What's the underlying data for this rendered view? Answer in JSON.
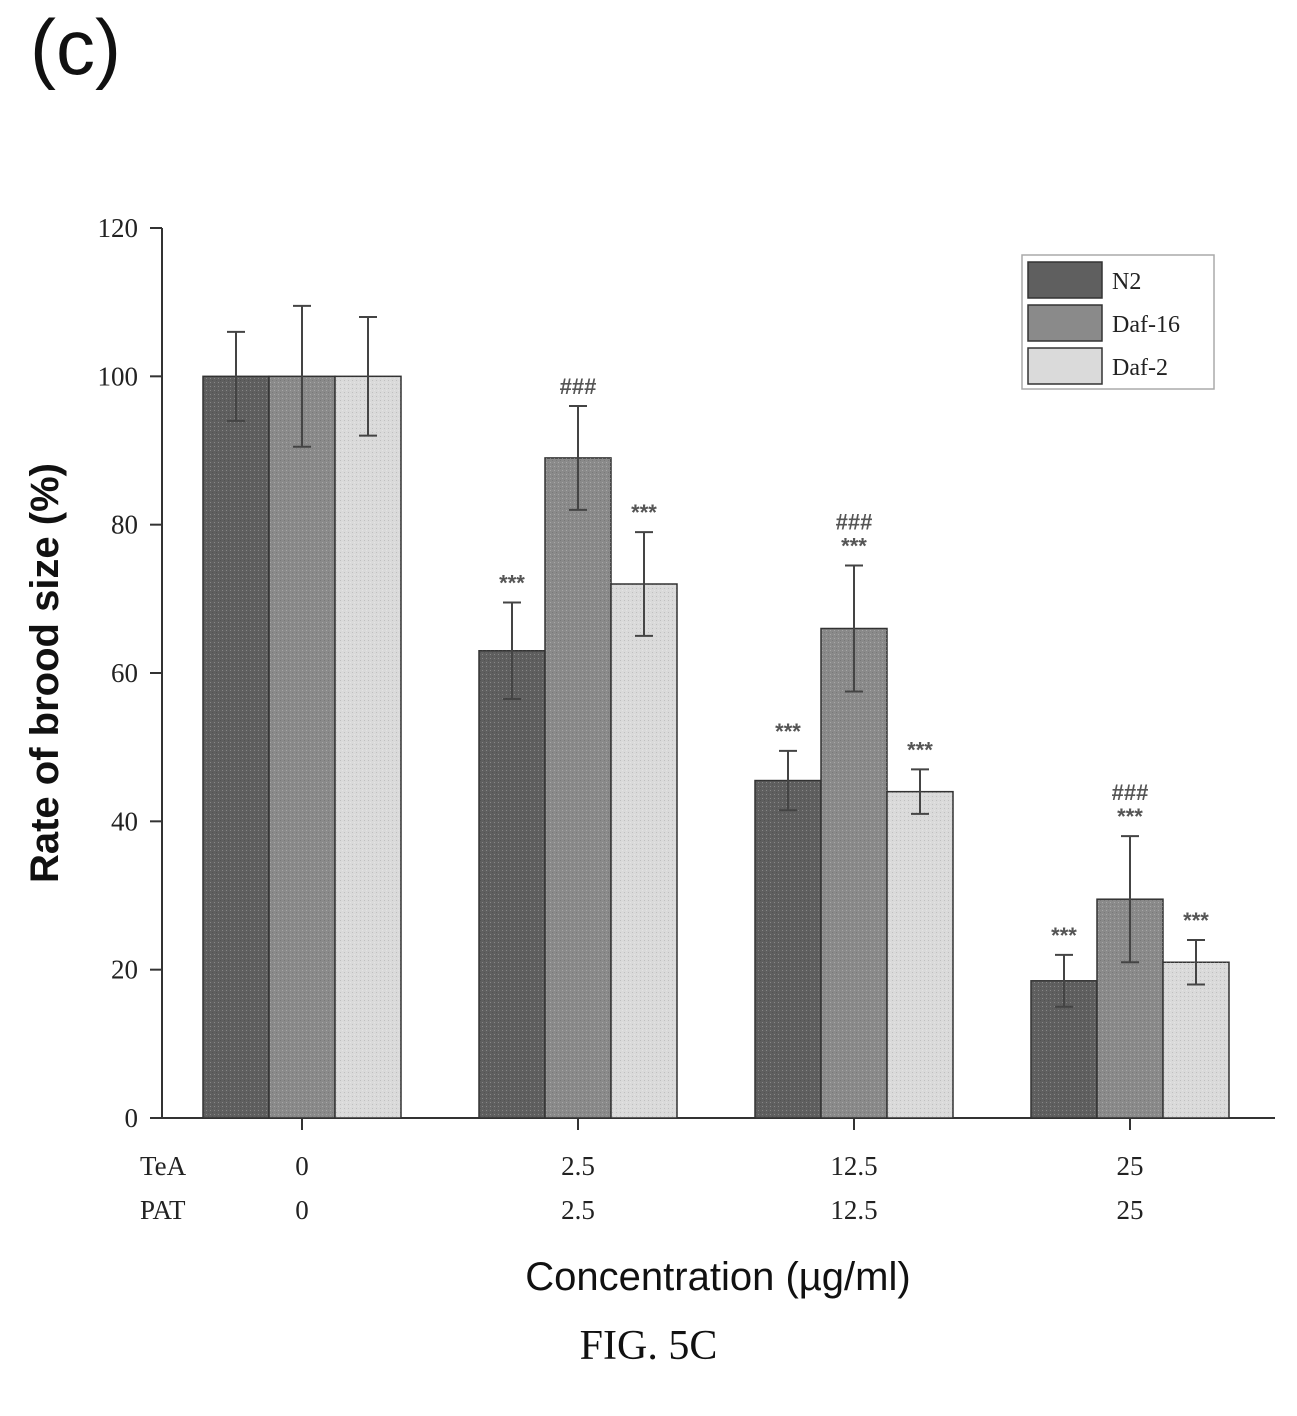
{
  "figure": {
    "panel_label": "(c)",
    "caption": "FIG. 5C"
  },
  "colors": {
    "N2": "#5f5f5f",
    "Daf-16": "#8a8a8a",
    "Daf-2": "#dadada",
    "axis": "#333333"
  },
  "chart_data": {
    "type": "bar",
    "ylabel": "Rate of brood size (%)",
    "xlabel": "Concentration (µg/ml)",
    "ylim": [
      0,
      120
    ],
    "yticks": [
      0,
      20,
      40,
      60,
      80,
      100,
      120
    ],
    "category_rows": [
      {
        "label": "TeA",
        "values": [
          "0",
          "2.5",
          "12.5",
          "25"
        ]
      },
      {
        "label": "PAT",
        "values": [
          "0",
          "2.5",
          "12.5",
          "25"
        ]
      }
    ],
    "legend_position": "top-right",
    "series": [
      {
        "name": "N2",
        "values": [
          100,
          63,
          45.5,
          18.5
        ],
        "errors": [
          6,
          6.5,
          4,
          3.5
        ],
        "significance": [
          "",
          "***",
          "***",
          "***"
        ]
      },
      {
        "name": "Daf-16",
        "values": [
          100,
          89,
          66,
          29.5
        ],
        "errors": [
          9.5,
          7,
          8.5,
          8.5
        ],
        "significance": [
          "",
          "###",
          "###\n***",
          "###\n***"
        ]
      },
      {
        "name": "Daf-2",
        "values": [
          100,
          72,
          44,
          21
        ],
        "errors": [
          8,
          7,
          3,
          3
        ],
        "significance": [
          "",
          "***",
          "***",
          "***"
        ]
      }
    ]
  }
}
